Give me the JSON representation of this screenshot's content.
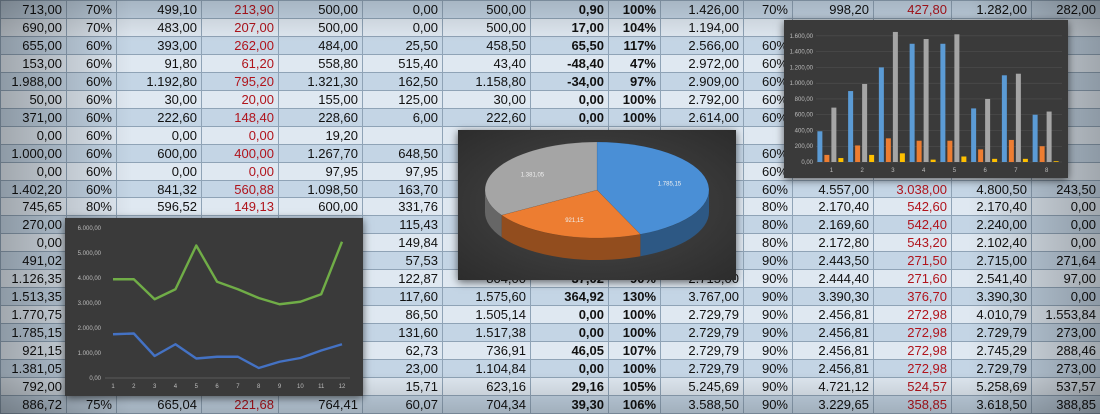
{
  "table": {
    "rows": [
      [
        "713,00",
        "70%",
        "499,10",
        "213,90",
        "500,00",
        "0,00",
        "500,00",
        "0,90",
        "100%",
        "1.426,00",
        "70%",
        "998,20",
        "427,80",
        "1.282,00",
        "282,00"
      ],
      [
        "690,00",
        "70%",
        "483,00",
        "207,00",
        "500,00",
        "0,00",
        "500,00",
        "17,00",
        "104%",
        "1.194,00",
        "",
        "",
        "",
        "",
        ""
      ],
      [
        "655,00",
        "60%",
        "393,00",
        "262,00",
        "484,00",
        "25,50",
        "458,50",
        "65,50",
        "117%",
        "2.566,00",
        "60%",
        "",
        "",
        "",
        ""
      ],
      [
        "153,00",
        "60%",
        "91,80",
        "61,20",
        "558,80",
        "515,40",
        "43,40",
        "-48,40",
        "47%",
        "2.972,00",
        "60%",
        "",
        "",
        "",
        ""
      ],
      [
        "1.988,00",
        "60%",
        "1.192,80",
        "795,20",
        "1.321,30",
        "162,50",
        "1.158,80",
        "-34,00",
        "97%",
        "2.909,00",
        "60%",
        "",
        "",
        "",
        ""
      ],
      [
        "50,00",
        "60%",
        "30,00",
        "20,00",
        "155,00",
        "125,00",
        "30,00",
        "0,00",
        "100%",
        "2.792,00",
        "60%",
        "",
        "",
        "",
        ""
      ],
      [
        "371,00",
        "60%",
        "222,60",
        "148,40",
        "228,60",
        "6,00",
        "222,60",
        "0,00",
        "100%",
        "2.614,00",
        "60%",
        "",
        "",
        "",
        ""
      ],
      [
        "0,00",
        "60%",
        "0,00",
        "0,00",
        "19,20",
        "",
        "",
        "",
        "",
        "",
        "",
        "",
        "",
        "",
        ""
      ],
      [
        "1.000,00",
        "60%",
        "600,00",
        "400,00",
        "1.267,70",
        "648,50",
        "",
        "",
        "",
        "",
        "60%",
        "",
        "",
        "",
        ""
      ],
      [
        "0,00",
        "60%",
        "0,00",
        "0,00",
        "97,95",
        "97,95",
        "",
        "",
        "",
        "",
        "60%",
        "",
        "",
        "",
        ""
      ],
      [
        "1.402,20",
        "60%",
        "841,32",
        "560,88",
        "1.098,50",
        "163,70",
        "",
        "",
        "",
        "",
        "60%",
        "4.557,00",
        "3.038,00",
        "4.800,50",
        "243,50"
      ],
      [
        "745,65",
        "80%",
        "596,52",
        "149,13",
        "600,00",
        "331,76",
        "",
        "",
        "",
        "",
        "80%",
        "2.170,40",
        "542,60",
        "2.170,40",
        "0,00"
      ],
      [
        "270,00",
        "",
        "",
        "",
        "",
        "115,43",
        "",
        "",
        "",
        "",
        "80%",
        "2.169,60",
        "542,40",
        "2.240,00",
        "0,00"
      ],
      [
        "0,00",
        "",
        "",
        "",
        "",
        "149,84",
        "",
        "",
        "",
        "",
        "80%",
        "2.172,80",
        "543,20",
        "2.102,40",
        "0,00"
      ],
      [
        "491,02",
        "",
        "",
        "",
        "",
        "57,53",
        "",
        "",
        "",
        "",
        "90%",
        "2.443,50",
        "271,50",
        "2.715,00",
        "271,64"
      ],
      [
        "1.126,35",
        "",
        "",
        "",
        "",
        "122,87",
        "804,00",
        "37,02",
        "90%",
        "2.715,00",
        "90%",
        "2.444,40",
        "271,60",
        "2.541,40",
        "97,00"
      ],
      [
        "1.513,35",
        "",
        "",
        "",
        "",
        "117,60",
        "1.575,60",
        "364,92",
        "130%",
        "3.767,00",
        "90%",
        "3.390,30",
        "376,70",
        "3.390,30",
        "0,00"
      ],
      [
        "1.770,75",
        "",
        "",
        "",
        "",
        "86,50",
        "1.505,14",
        "0,00",
        "100%",
        "2.729,79",
        "90%",
        "2.456,81",
        "272,98",
        "4.010,79",
        "1.553,84"
      ],
      [
        "1.785,15",
        "",
        "",
        "",
        "",
        "131,60",
        "1.517,38",
        "0,00",
        "100%",
        "2.729,79",
        "90%",
        "2.456,81",
        "272,98",
        "2.729,79",
        "273,00"
      ],
      [
        "921,15",
        "",
        "",
        "",
        "",
        "62,73",
        "736,91",
        "46,05",
        "107%",
        "2.729,79",
        "90%",
        "2.456,81",
        "272,98",
        "2.745,29",
        "288,46"
      ],
      [
        "1.381,05",
        "",
        "",
        "",
        "",
        "23,00",
        "1.104,84",
        "0,00",
        "100%",
        "2.729,79",
        "90%",
        "2.456,81",
        "272,98",
        "2.729,79",
        "273,00"
      ],
      [
        "792,00",
        "",
        "",
        "",
        "",
        "15,71",
        "623,16",
        "29,16",
        "105%",
        "5.245,69",
        "90%",
        "4.721,12",
        "524,57",
        "5.258,69",
        "537,57"
      ],
      [
        "886,72",
        "75%",
        "665,04",
        "221,68",
        "764,41",
        "60,07",
        "704,34",
        "39,30",
        "106%",
        "3.588,50",
        "90%",
        "3.229,65",
        "358,85",
        "3.618,50",
        "388,85"
      ]
    ]
  },
  "chart_data": [
    {
      "type": "line",
      "x": [
        1,
        2,
        3,
        4,
        5,
        6,
        7,
        8,
        9,
        10,
        11,
        12
      ],
      "series": [
        {
          "color": "#70ad47",
          "values": [
            3950,
            3950,
            3150,
            3550,
            5300,
            3850,
            3550,
            3200,
            2950,
            3050,
            3350,
            5450
          ]
        },
        {
          "color": "#4472c4",
          "values": [
            1750,
            1780,
            880,
            1350,
            780,
            850,
            850,
            400,
            650,
            800,
            1100,
            1350
          ]
        }
      ],
      "ylim": [
        0,
        6000
      ],
      "y_ticks": [
        "0,00",
        "1.000,00",
        "2.000,00",
        "3.000,00",
        "4.000,00",
        "5.000,00",
        "6.000,00"
      ],
      "x_ticks": [
        "1",
        "2",
        "3",
        "4",
        "5",
        "6",
        "7",
        "8",
        "9",
        "10",
        "11",
        "12"
      ],
      "grid": false
    },
    {
      "type": "pie",
      "slices": [
        {
          "label": "1.785,15",
          "value": 1785.15,
          "color": "#4a8fd6"
        },
        {
          "label": "921,15",
          "value": 921.15,
          "color": "#ed7d31"
        },
        {
          "label": "1.381,05",
          "value": 1381.05,
          "color": "#a5a5a5"
        }
      ]
    },
    {
      "type": "bar",
      "categories": [
        "1",
        "2",
        "3",
        "4",
        "5",
        "6",
        "7",
        "8"
      ],
      "series": [
        {
          "color": "#5b9bd5",
          "values": [
            390,
            900,
            1200,
            1500,
            1500,
            680,
            1100,
            600
          ]
        },
        {
          "color": "#ed7d31",
          "values": [
            90,
            210,
            300,
            270,
            270,
            160,
            280,
            200
          ]
        },
        {
          "color": "#a5a5a5",
          "values": [
            690,
            990,
            1650,
            1560,
            1620,
            800,
            1120,
            640
          ]
        },
        {
          "color": "#ffc000",
          "values": [
            50,
            90,
            110,
            30,
            70,
            40,
            40,
            10
          ]
        }
      ],
      "ylim": [
        0,
        1700
      ],
      "y_ticks": [
        "0,00",
        "200,00",
        "400,00",
        "600,00",
        "800,00",
        "1.000,00",
        "1.200,00",
        "1.400,00",
        "1.600,00"
      ],
      "grid": true
    }
  ]
}
